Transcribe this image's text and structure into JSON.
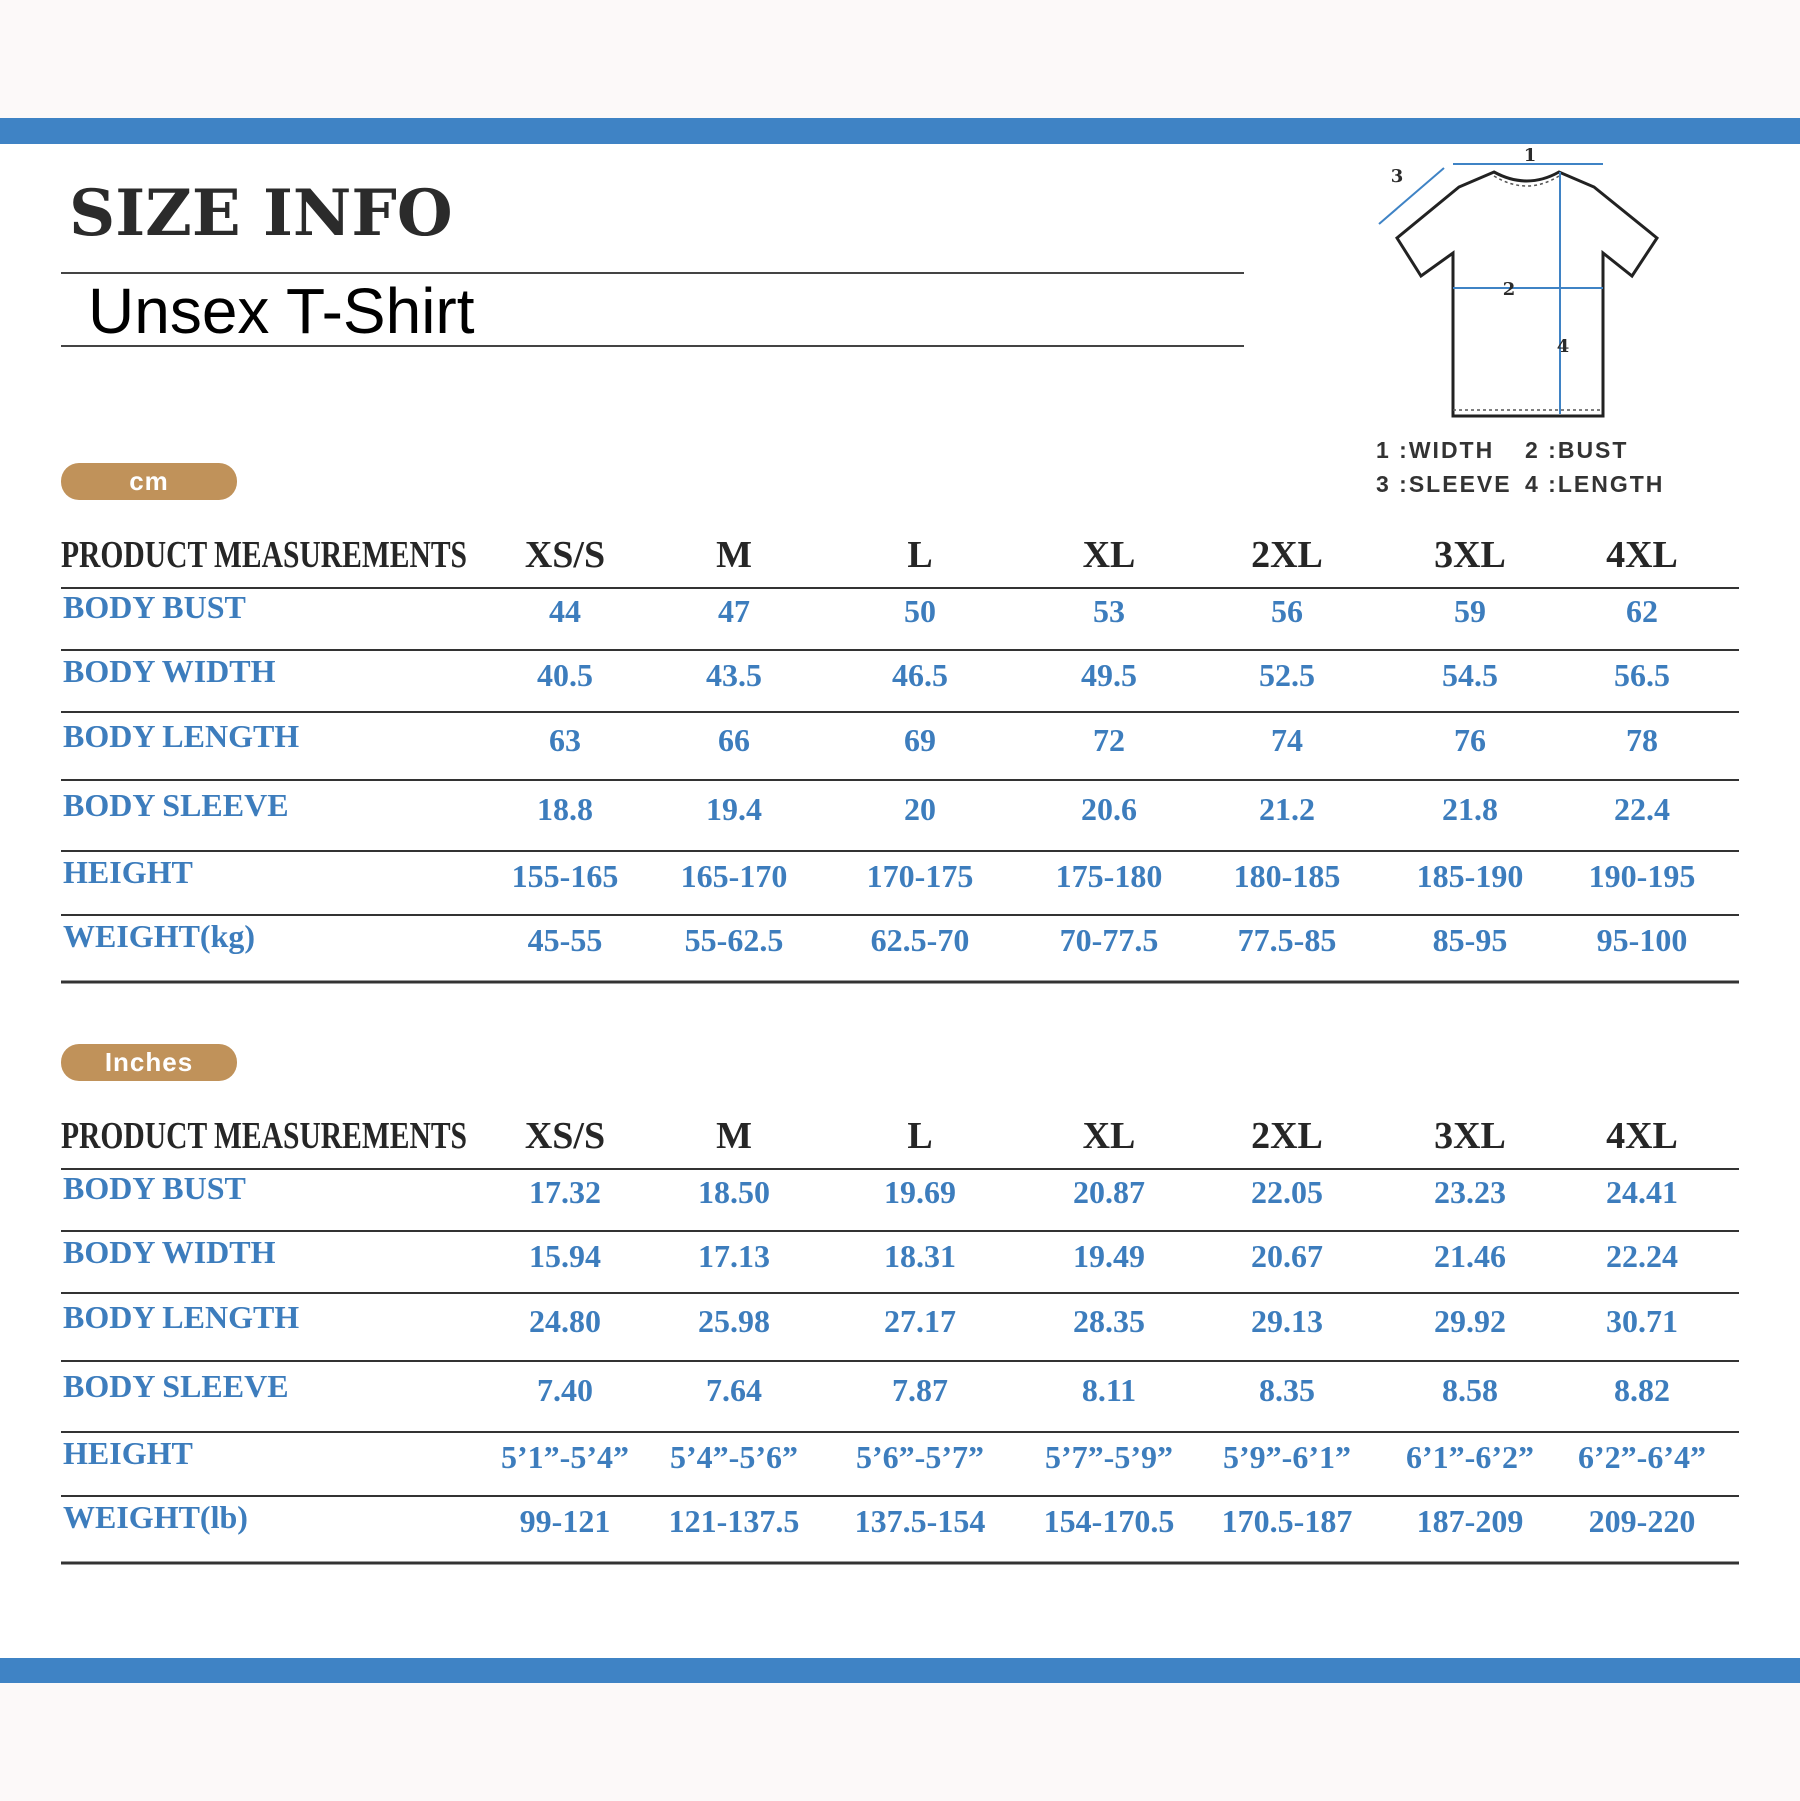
{
  "header": {
    "title": "SIZE INFO",
    "subtitle": "Unsex T-Shirt"
  },
  "diagram": {
    "markers": [
      "1",
      "2",
      "3",
      "4"
    ],
    "legend": [
      "1 :WIDTH",
      "2 :BUST",
      "3 :SLEEVE",
      "4 :LENGTH"
    ]
  },
  "tables": [
    {
      "unit": "cm",
      "columns": [
        "PRODUCT MEASUREMENTS",
        "XS/S",
        "M",
        "L",
        "XL",
        "2XL",
        "3XL",
        "4XL"
      ],
      "rows": [
        [
          "BODY BUST",
          "44",
          "47",
          "50",
          "53",
          "56",
          "59",
          "62"
        ],
        [
          "BODY WIDTH",
          "40.5",
          "43.5",
          "46.5",
          "49.5",
          "52.5",
          "54.5",
          "56.5"
        ],
        [
          "BODY LENGTH",
          "63",
          "66",
          "69",
          "72",
          "74",
          "76",
          "78"
        ],
        [
          "BODY SLEEVE",
          "18.8",
          "19.4",
          "20",
          "20.6",
          "21.2",
          "21.8",
          "22.4"
        ],
        [
          "HEIGHT",
          "155-165",
          "165-170",
          "170-175",
          "175-180",
          "180-185",
          "185-190",
          "190-195"
        ],
        [
          "WEIGHT(kg)",
          "45-55",
          "55-62.5",
          "62.5-70",
          "70-77.5",
          "77.5-85",
          "85-95",
          "95-100"
        ]
      ]
    },
    {
      "unit": "Inches",
      "columns": [
        "PRODUCT MEASUREMENTS",
        "XS/S",
        "M",
        "L",
        "XL",
        "2XL",
        "3XL",
        "4XL"
      ],
      "rows": [
        [
          "BODY BUST",
          "17.32",
          "18.50",
          "19.69",
          "20.87",
          "22.05",
          "23.23",
          "24.41"
        ],
        [
          "BODY WIDTH",
          "15.94",
          "17.13",
          "18.31",
          "19.49",
          "20.67",
          "21.46",
          "22.24"
        ],
        [
          "BODY LENGTH",
          "24.80",
          "25.98",
          "27.17",
          "28.35",
          "29.13",
          "29.92",
          "30.71"
        ],
        [
          "BODY SLEEVE",
          "7.40",
          "7.64",
          "7.87",
          "8.11",
          "8.35",
          "8.58",
          "8.82"
        ],
        [
          "HEIGHT",
          "5’1”-5’4”",
          "5’4”-5’6”",
          "5’6”-5’7”",
          "5’7”-5’9”",
          "5’9”-6’1”",
          "6’1”-6’2”",
          "6’2”-6’4”"
        ],
        [
          "WEIGHT(lb)",
          "99-121",
          "121-137.5",
          "137.5-154",
          "154-170.5",
          "170.5-187",
          "187-209",
          "209-220"
        ]
      ]
    }
  ]
}
